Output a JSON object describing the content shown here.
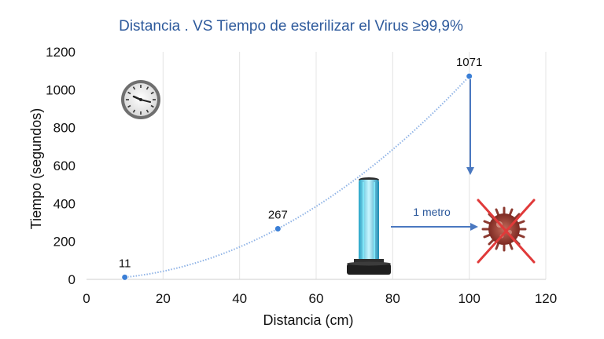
{
  "chart_data": {
    "type": "scatter",
    "title": "Distancia . VS Tiempo de esterilizar el Virus ≥99,9%",
    "xlabel": "Distancia (cm)",
    "ylabel": "Tiempo (segundos)",
    "xlim": [
      0,
      120
    ],
    "ylim": [
      0,
      1200
    ],
    "xticks": [
      0,
      20,
      40,
      60,
      80,
      100,
      120
    ],
    "yticks": [
      0,
      200,
      400,
      600,
      800,
      1000,
      1200
    ],
    "grid": "vertical",
    "trendline": "dotted polynomial",
    "series": [
      {
        "points": [
          {
            "x": 10,
            "y": 11,
            "label": "11"
          },
          {
            "x": 50,
            "y": 267,
            "label": "267"
          },
          {
            "x": 100,
            "y": 1071,
            "label": "1071"
          }
        ]
      }
    ],
    "annotations": [
      {
        "text": "1 metro"
      }
    ],
    "colors": {
      "title": "#2e5a9c",
      "points": "#3b7fd6",
      "trend": "#8fb3e6",
      "arrow": "#4a78c0",
      "cross": "#e03a3a",
      "lamp_glow": "#5cd0e8"
    },
    "icons": [
      "clock-icon",
      "uv-lamp-icon",
      "virus-icon"
    ]
  }
}
